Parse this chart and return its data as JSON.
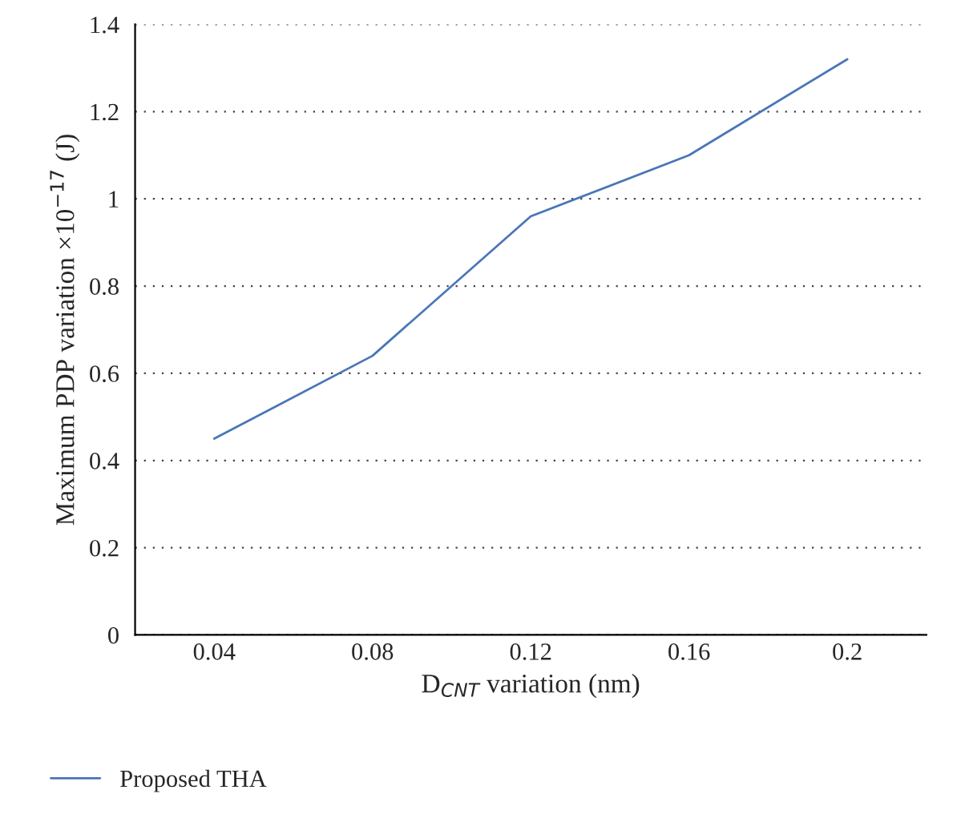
{
  "chart_data": {
    "type": "line",
    "xlabel": "D$_{CNT}$ variation (nm)",
    "ylabel": "Maximum PDP variation ×10$^{−17}$ (J)",
    "categories": [
      "0.04",
      "0.08",
      "0.12",
      "0.16",
      "0.2"
    ],
    "series": [
      {
        "name": "Proposed THA",
        "color": "#4a76b8",
        "values": [
          0.45,
          0.64,
          0.96,
          1.1,
          1.32
        ]
      }
    ],
    "ylim": [
      0,
      1.4
    ],
    "yticks": [
      0,
      0.2,
      0.4,
      0.6,
      0.8,
      1,
      1.2,
      1.4
    ],
    "grid": "y",
    "legend": "bottom",
    "line_style": "solid"
  }
}
